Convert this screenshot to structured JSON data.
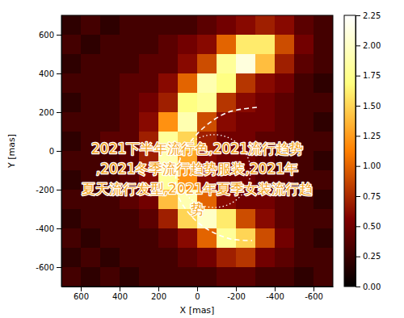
{
  "chart_data": {
    "type": "heatmap",
    "x_label": "X [mas]",
    "y_label": "Y [mas]",
    "x": [
      650,
      550,
      450,
      350,
      250,
      150,
      50,
      -50,
      -150,
      -250,
      -350,
      -450,
      -550,
      -650
    ],
    "y": [
      650,
      550,
      450,
      350,
      250,
      150,
      50,
      -50,
      -150,
      -250,
      -350,
      -450,
      -550,
      -650
    ],
    "values": [
      [
        0.2,
        0.3,
        0.2,
        0.3,
        0.3,
        0.3,
        0.3,
        0.4,
        0.5,
        0.6,
        0.7,
        0.6,
        0.4,
        0.3
      ],
      [
        0.3,
        0.2,
        0.3,
        0.3,
        0.3,
        0.4,
        0.5,
        0.6,
        1.0,
        1.6,
        1.6,
        0.9,
        0.5,
        0.3
      ],
      [
        0.2,
        0.3,
        0.3,
        0.3,
        0.4,
        0.4,
        0.6,
        0.9,
        1.8,
        2.1,
        1.4,
        0.7,
        0.4,
        0.3
      ],
      [
        0.3,
        0.3,
        0.3,
        0.4,
        0.4,
        0.6,
        1.0,
        1.9,
        1.7,
        0.8,
        0.6,
        0.5,
        0.3,
        0.2
      ],
      [
        0.2,
        0.3,
        0.3,
        0.4,
        0.5,
        0.7,
        1.7,
        1.8,
        0.8,
        0.6,
        0.5,
        0.4,
        0.3,
        0.3
      ],
      [
        0.3,
        0.3,
        0.3,
        0.4,
        0.6,
        1.2,
        1.9,
        0.9,
        0.6,
        0.5,
        0.5,
        0.4,
        0.3,
        0.2
      ],
      [
        0.2,
        0.3,
        0.4,
        0.4,
        0.7,
        1.8,
        1.5,
        0.7,
        0.5,
        0.5,
        0.4,
        0.4,
        0.3,
        0.3
      ],
      [
        0.3,
        0.3,
        0.3,
        0.4,
        0.7,
        1.9,
        1.3,
        0.6,
        0.5,
        0.5,
        0.4,
        0.3,
        0.3,
        0.2
      ],
      [
        0.2,
        0.3,
        0.3,
        0.4,
        0.6,
        1.8,
        1.2,
        0.6,
        0.5,
        0.5,
        0.4,
        0.4,
        0.3,
        0.3
      ],
      [
        0.3,
        0.3,
        0.3,
        0.4,
        0.5,
        1.4,
        1.9,
        1.0,
        0.6,
        0.5,
        0.5,
        0.4,
        0.3,
        0.2
      ],
      [
        0.2,
        0.3,
        0.3,
        0.3,
        0.4,
        0.7,
        1.5,
        2.0,
        1.6,
        0.9,
        0.6,
        0.4,
        0.3,
        0.3
      ],
      [
        0.3,
        0.2,
        0.3,
        0.3,
        0.3,
        0.4,
        0.6,
        1.0,
        1.8,
        1.5,
        0.9,
        0.5,
        0.3,
        0.2
      ],
      [
        0.2,
        0.3,
        0.2,
        0.3,
        0.3,
        0.3,
        0.4,
        0.5,
        0.7,
        0.8,
        0.5,
        0.4,
        0.3,
        0.3
      ],
      [
        0.3,
        0.2,
        0.3,
        0.2,
        0.3,
        0.3,
        0.3,
        0.3,
        0.4,
        0.4,
        0.3,
        0.3,
        0.2,
        0.3
      ]
    ],
    "xlim": [
      700,
      -700
    ],
    "ylim": [
      -700,
      700
    ],
    "xticks": [
      600,
      400,
      200,
      0,
      -200,
      -400,
      -600
    ],
    "yticks": [
      -600,
      -400,
      -200,
      0,
      200,
      400,
      600
    ],
    "colorbar": {
      "range": [
        0,
        2.25
      ],
      "ticks": [
        {
          "value": 0,
          "label": "0.00"
        },
        {
          "value": 0.25,
          "label": "0.25"
        },
        {
          "value": 0.5,
          "label": "0.50"
        },
        {
          "value": 0.75,
          "label": "0.75"
        },
        {
          "value": 1,
          "label": "1.00"
        },
        {
          "value": 1.25,
          "label": "1.25"
        },
        {
          "value": 1.5,
          "label": "1.50"
        },
        {
          "value": 1.75,
          "label": "1.75"
        },
        {
          "value": 2,
          "label": "2.00"
        },
        {
          "value": 2.25,
          "label": "2.25"
        }
      ]
    },
    "curves": [
      {
        "line_style": "dotted",
        "color": "#ffffff",
        "center": [
          -87,
          -104
        ],
        "radius": 188
      },
      {
        "line_style": "dashed",
        "color": "#ffffff",
        "x": [
          -308,
          -150,
          -4,
          92,
          108,
          50,
          -46,
          -171,
          -283
        ],
        "y": [
          225,
          196,
          92,
          -54,
          -200,
          -313,
          -400,
          -454,
          -463
        ]
      }
    ],
    "annotations": [
      "2021下半年流行色,2021流行趋势",
      ",2021冬季流行趋势服装,2021年",
      "夏天流行发型,2021年夏季女装流行趋",
      "势"
    ]
  }
}
